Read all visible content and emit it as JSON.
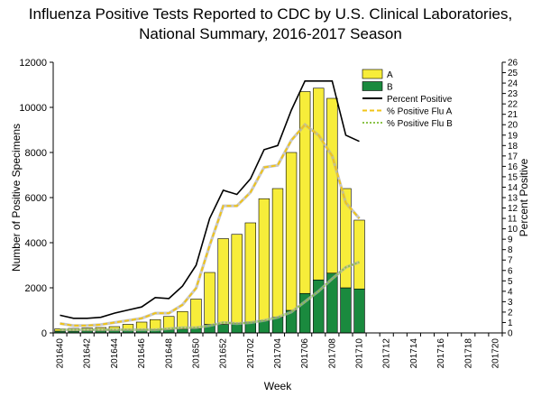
{
  "chart_data": {
    "type": "bar",
    "title_line1": "Influenza Positive Tests Reported to CDC by U.S. Clinical Laboratories,",
    "title_line2": "National Summary, 2016-2017 Season",
    "xlabel": "Week",
    "ylabel_left": "Number of Positive Specimens",
    "ylabel_right": "Percent Positive",
    "ylim_left": [
      0,
      12000
    ],
    "ylim_right": [
      0,
      26
    ],
    "yticks_left": [
      "0",
      "2000",
      "4000",
      "6000",
      "8000",
      "10000",
      "12000"
    ],
    "yticks_right": [
      "0",
      "1",
      "2",
      "3",
      "4",
      "5",
      "6",
      "7",
      "8",
      "9",
      "10",
      "11",
      "12",
      "13",
      "14",
      "15",
      "16",
      "17",
      "18",
      "19",
      "20",
      "21",
      "22",
      "23",
      "24",
      "25",
      "26"
    ],
    "tick_labels": [
      "201640",
      "201642",
      "201644",
      "201646",
      "201648",
      "201650",
      "201652",
      "201702",
      "201704",
      "201706",
      "201708",
      "201710",
      "201712",
      "201714",
      "201716",
      "201718",
      "201720"
    ],
    "weeks": [
      "201640",
      "201641",
      "201642",
      "201643",
      "201644",
      "201645",
      "201646",
      "201647",
      "201648",
      "201649",
      "201650",
      "201651",
      "201652",
      "201701",
      "201702",
      "201703",
      "201704",
      "201705",
      "201706",
      "201707",
      "201708",
      "201709",
      "201710"
    ],
    "total_slots": 33,
    "series": [
      {
        "name": "A",
        "color": "#f7ed3a",
        "values": [
          100,
          120,
          130,
          150,
          180,
          260,
          350,
          450,
          580,
          780,
          1300,
          2300,
          3800,
          3950,
          4400,
          5400,
          5700,
          7000,
          8950,
          8500,
          7750,
          4400,
          3050
        ]
      },
      {
        "name": "B",
        "color": "#1a8a3e",
        "values": [
          80,
          80,
          90,
          90,
          100,
          120,
          130,
          140,
          150,
          170,
          200,
          380,
          380,
          420,
          480,
          550,
          700,
          1000,
          1750,
          2350,
          2650,
          2000,
          1950
        ]
      }
    ],
    "lines": [
      {
        "name": "Percent Positive",
        "color": "#000000",
        "style": "solid",
        "values": [
          1.7,
          1.4,
          1.4,
          1.5,
          1.9,
          2.2,
          2.5,
          3.4,
          3.3,
          4.5,
          6.5,
          11,
          13.7,
          13.3,
          14.8,
          17.6,
          18,
          21.4,
          24.2,
          24.2,
          24.2,
          19,
          18.4
        ]
      },
      {
        "name": "% Positive Flu A",
        "color": "#f0c419",
        "style": "dashed",
        "values": [
          0.9,
          0.7,
          0.7,
          0.8,
          1.0,
          1.2,
          1.4,
          1.9,
          1.9,
          2.7,
          4.3,
          8.4,
          12.2,
          12.2,
          13.5,
          15.9,
          16.1,
          18.5,
          20,
          19,
          17,
          12.5,
          11
        ]
      },
      {
        "name": "% Positive Flu B",
        "color": "#8bc34a",
        "style": "dotted",
        "values": [
          0.3,
          0.3,
          0.3,
          0.3,
          0.3,
          0.3,
          0.3,
          0.3,
          0.4,
          0.5,
          0.5,
          0.7,
          1.0,
          0.9,
          1.0,
          1.2,
          1.5,
          2.0,
          3.0,
          4.0,
          5.2,
          6.3,
          6.8
        ]
      }
    ],
    "legend": [
      "A",
      "B",
      "Percent Positive",
      "% Positive Flu A",
      "% Positive Flu B"
    ]
  }
}
